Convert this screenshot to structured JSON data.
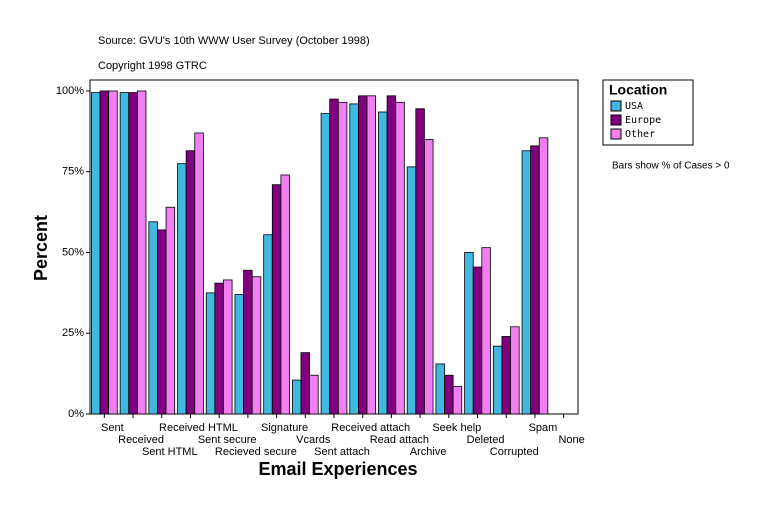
{
  "chart_data": {
    "type": "bar",
    "title": "Source: GVU's 10th WWW User Survey (October 1998)",
    "subtitle": "Copyright 1998 GTRC",
    "x_label": "Email Experiences",
    "y_label": "Percent",
    "note": "Bars show % of Cases > 0",
    "legend_title": "Location",
    "legend_position": "right",
    "categories": [
      "Sent",
      "Received",
      "Sent HTML",
      "Received HTML",
      "Sent secure",
      "Recieved secure",
      "Signature",
      "Vcards",
      "Sent attach",
      "Received attach",
      "Read attach",
      "Archive",
      "Seek help",
      "Deleted",
      "Corrupted",
      "Spam",
      "None"
    ],
    "series": [
      {
        "name": "USA",
        "color": "#40b8e0",
        "values": [
          99.5,
          99.5,
          59.5,
          77.5,
          37.5,
          37,
          55.5,
          10.5,
          93,
          96,
          93.5,
          76.5,
          15.5,
          50,
          21,
          81.5,
          0
        ]
      },
      {
        "name": "Europe",
        "color": "#800080",
        "values": [
          100,
          99.5,
          57,
          81.5,
          40.5,
          44.5,
          71,
          19,
          97.5,
          98.5,
          98.5,
          94.5,
          12,
          45.5,
          24,
          83,
          0
        ]
      },
      {
        "name": "Other",
        "color": "#f080f0",
        "values": [
          100,
          100,
          64,
          87,
          41.5,
          42.5,
          74,
          12,
          96.5,
          98.5,
          96.5,
          85,
          8.5,
          51.5,
          27,
          85.5,
          0
        ]
      }
    ],
    "ylim": [
      0,
      103.4
    ],
    "yticks": [
      {
        "value": 0,
        "label": "0%"
      },
      {
        "value": 25,
        "label": "25%"
      },
      {
        "value": 50,
        "label": "50%"
      },
      {
        "value": 75,
        "label": "75%"
      },
      {
        "value": 100,
        "label": "100%"
      }
    ]
  }
}
